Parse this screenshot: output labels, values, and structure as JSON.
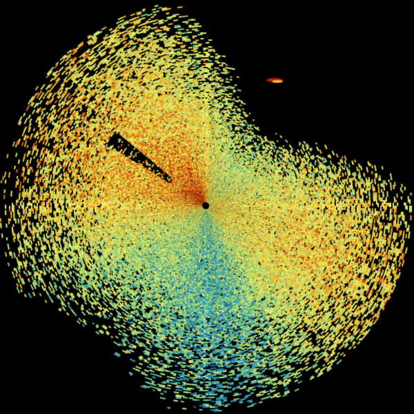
{
  "product": {
    "kind": "radar-ppi",
    "background_color": "#000000",
    "palette": [
      "#0b3d73",
      "#1f78b4",
      "#3aa8b8",
      "#7fcf8a",
      "#cfe878",
      "#f2ee5c",
      "#f5b830",
      "#e86a10",
      "#c01a08"
    ],
    "site_marker_color": "#000000"
  }
}
